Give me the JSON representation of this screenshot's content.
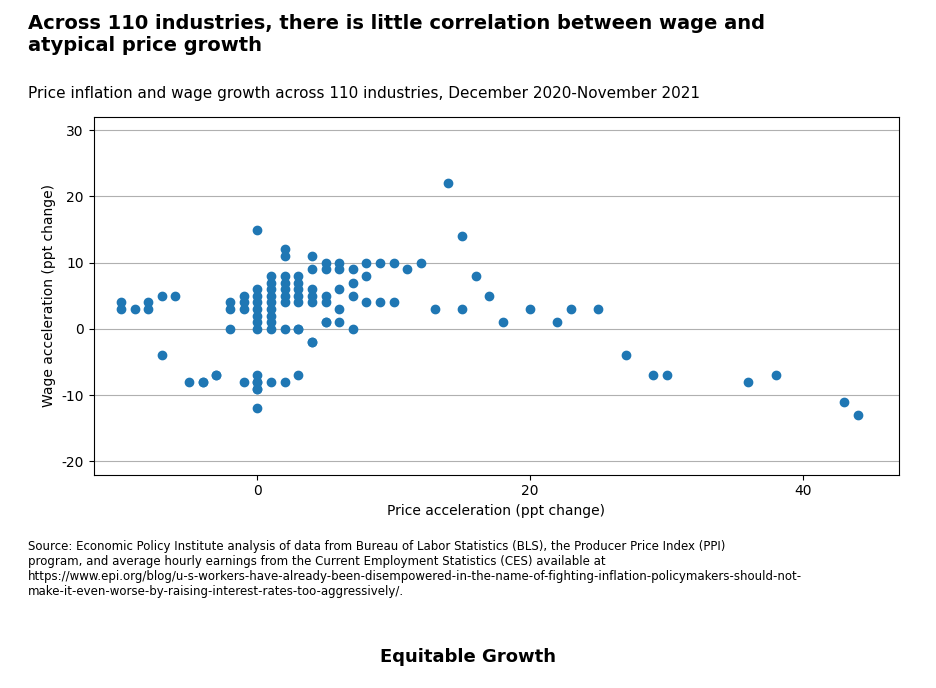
{
  "chart_data": {
    "type": "scatter",
    "title": "Across 110 industries, there is little correlation between wage and\natypical price growth",
    "subtitle": "Price inflation and wage growth across 110 industries, December 2020-November 2021",
    "xlabel": "Price acceleration (ppt change)",
    "ylabel": "Wage acceleration (ppt change)",
    "source": "Source: Economic Policy Institute analysis of data from Bureau of Labor Statistics (BLS), the Producer Price Index (PPI)\nprogram, and average hourly earnings from the Current Employment Statistics (CES) available at\nhttps://www.epi.org/blog/u-s-workers-have-already-been-disempowered-in-the-name-of-fighting-inflation-policymakers-should-not-\nmake-it-even-worse-by-raising-interest-rates-too-aggressively/.",
    "annotations": [
      "Equitable Growth"
    ],
    "xlim": [
      -12,
      47
    ],
    "ylim": [
      -22,
      32
    ],
    "xticks": [
      0,
      20,
      40
    ],
    "yticks": [
      -20,
      -10,
      0,
      10,
      20,
      30
    ],
    "grid": "y",
    "x": [
      -10,
      -10,
      -9,
      -8,
      -8,
      -7,
      -7,
      -6,
      -5,
      -4,
      -4,
      -3,
      -3,
      -2,
      -2,
      -2,
      -1,
      -1,
      -1,
      0,
      0,
      0,
      0,
      0,
      0,
      0,
      0,
      0,
      0,
      0,
      0,
      0,
      1,
      1,
      1,
      1,
      1,
      1,
      1,
      1,
      1,
      2,
      2,
      2,
      2,
      2,
      2,
      2,
      2,
      3,
      3,
      3,
      3,
      3,
      3,
      3,
      4,
      4,
      4,
      4,
      4,
      4,
      5,
      5,
      5,
      5,
      5,
      6,
      6,
      6,
      6,
      7,
      7,
      7,
      7,
      8,
      8,
      8,
      9,
      9,
      10,
      10,
      11,
      12,
      13,
      14,
      15,
      15,
      16,
      17,
      18,
      20,
      22,
      23,
      25,
      27,
      29,
      30,
      36,
      38,
      43,
      44,
      0,
      -1,
      1,
      2,
      3,
      4,
      5,
      6
    ],
    "values": [
      3,
      4,
      3,
      4,
      3,
      5,
      -4,
      5,
      -8,
      -8,
      -8,
      -7,
      -7,
      4,
      3,
      0,
      5,
      4,
      3,
      15,
      6,
      5,
      4,
      3,
      2,
      1,
      -7,
      -8,
      -8,
      -9,
      -12,
      0,
      8,
      7,
      6,
      5,
      4,
      3,
      2,
      1,
      0,
      12,
      11,
      8,
      7,
      6,
      5,
      4,
      0,
      8,
      7,
      6,
      5,
      4,
      0,
      -7,
      11,
      9,
      6,
      5,
      4,
      -2,
      10,
      9,
      5,
      4,
      1,
      10,
      9,
      6,
      3,
      9,
      7,
      5,
      0,
      10,
      8,
      4,
      10,
      4,
      10,
      4,
      9,
      10,
      3,
      22,
      14,
      3,
      8,
      5,
      1,
      3,
      1,
      3,
      3,
      -4,
      -7,
      -7,
      -8,
      -7,
      -11,
      -13,
      -9,
      -8,
      -8,
      -8,
      0,
      -2,
      1,
      1
    ]
  }
}
